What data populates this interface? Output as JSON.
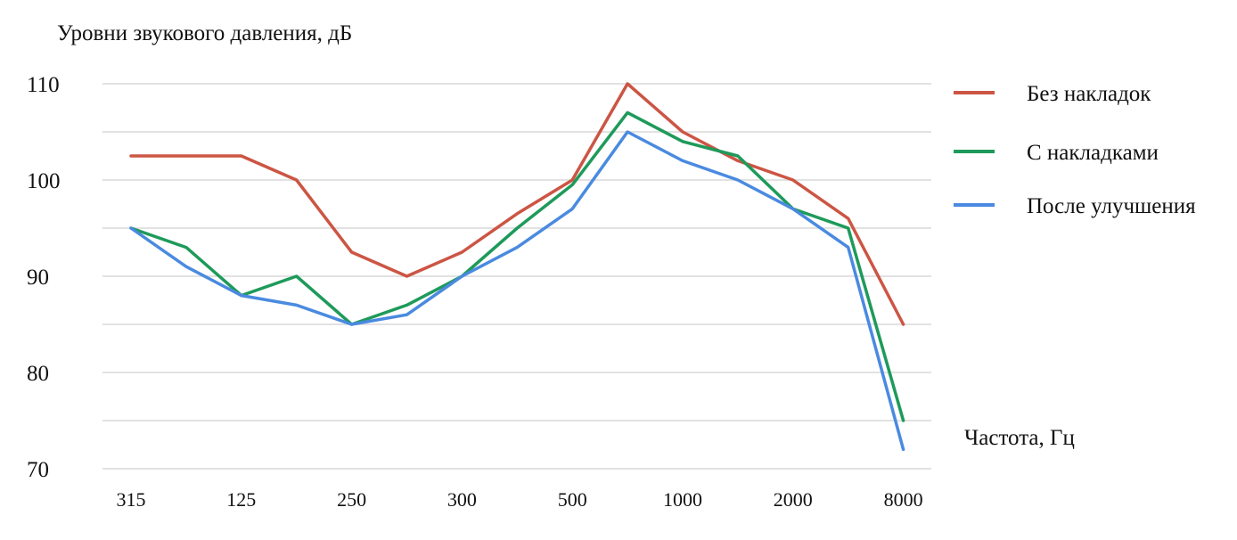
{
  "chart_data": {
    "type": "line",
    "ylabel": "Уровни звукового давления, дБ",
    "xlabel": "Частота, Гц",
    "ylim": [
      70,
      110
    ],
    "yticks": [
      70,
      80,
      90,
      100,
      110
    ],
    "grid": true,
    "legend_position": "right",
    "x_tick_labels": [
      "315",
      "125",
      "250",
      "300",
      "500",
      "1000",
      "2000",
      "8000"
    ],
    "series": [
      {
        "name": "Без накладок",
        "color": "#cc5544",
        "values": [
          102.5,
          102.5,
          102.5,
          100,
          92.5,
          90,
          92.5,
          96.5,
          100,
          110,
          105,
          102,
          100,
          96,
          85
        ]
      },
      {
        "name": "С накладками",
        "color": "#1e9a5a",
        "values": [
          95,
          93,
          88,
          90,
          85,
          87,
          90,
          95,
          99.5,
          107,
          104,
          102.5,
          97,
          95,
          75
        ]
      },
      {
        "name": "После улучшения",
        "color": "#4a8ae0",
        "values": [
          95,
          91,
          88,
          87,
          85,
          86,
          90,
          93,
          97,
          105,
          102,
          100,
          97,
          93,
          72
        ]
      }
    ]
  }
}
